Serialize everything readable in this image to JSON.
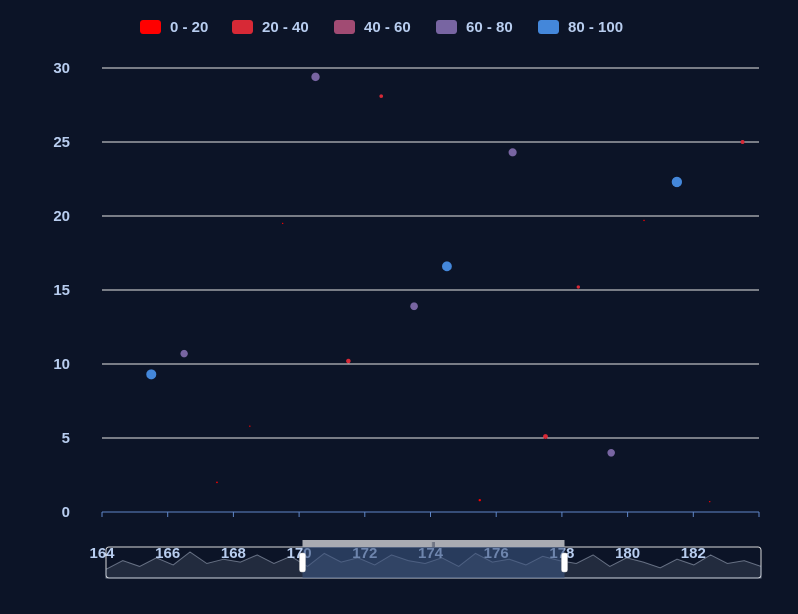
{
  "colors": {
    "background": "#0c1427",
    "axis": "#5f86c8",
    "grid": "#e6e6e6",
    "text": "#b8cdef",
    "zoom_fill": "#3c5581",
    "zoom_border": "#d9d9d9",
    "zoom_handle_bar": "#a9abb2"
  },
  "chart_data": {
    "type": "scatter",
    "title": "",
    "xlabel": "",
    "ylabel": "",
    "x_ticks": [
      "164",
      "166",
      "168",
      "170",
      "172",
      "174",
      "176",
      "178",
      "180",
      "182"
    ],
    "y_ticks": [
      "0",
      "5",
      "10",
      "15",
      "20",
      "25",
      "30"
    ],
    "xlim": [
      164,
      184
    ],
    "ylim": [
      0,
      30
    ],
    "grid": true,
    "legend_position": "top-center",
    "visual_map": [
      {
        "label": "0 - 20",
        "color": "#ff0000"
      },
      {
        "label": "20 - 40",
        "color": "#d72936"
      },
      {
        "label": "40 - 60",
        "color": "#a14b73"
      },
      {
        "label": "60 - 80",
        "color": "#7865a2"
      },
      {
        "label": "80 - 100",
        "color": "#4487da"
      }
    ],
    "points": [
      {
        "x": 165.5,
        "y": 9.3,
        "v": 92
      },
      {
        "x": 166.5,
        "y": 10.7,
        "v": 65
      },
      {
        "x": 167.5,
        "y": 2.0,
        "v": 5
      },
      {
        "x": 168.5,
        "y": 5.8,
        "v": 2
      },
      {
        "x": 169.5,
        "y": 19.5,
        "v": 2
      },
      {
        "x": 170.5,
        "y": 29.4,
        "v": 75
      },
      {
        "x": 171.5,
        "y": 10.2,
        "v": 35
      },
      {
        "x": 172.5,
        "y": 28.1,
        "v": 25
      },
      {
        "x": 173.5,
        "y": 13.9,
        "v": 68
      },
      {
        "x": 174.5,
        "y": 16.6,
        "v": 90
      },
      {
        "x": 175.5,
        "y": 0.8,
        "v": 12
      },
      {
        "x": 176.5,
        "y": 24.3,
        "v": 72
      },
      {
        "x": 177.5,
        "y": 5.1,
        "v": 38
      },
      {
        "x": 178.5,
        "y": 15.2,
        "v": 22
      },
      {
        "x": 179.5,
        "y": 4.0,
        "v": 66
      },
      {
        "x": 180.5,
        "y": 19.7,
        "v": 3
      },
      {
        "x": 181.5,
        "y": 22.3,
        "v": 95
      },
      {
        "x": 182.5,
        "y": 0.7,
        "v": 2
      },
      {
        "x": 183.5,
        "y": 25.0,
        "v": 28
      }
    ],
    "data_zoom": {
      "start": 170,
      "end": 178,
      "preview": [
        4,
        10,
        6,
        12,
        7,
        16,
        8,
        11,
        9,
        14,
        8,
        13,
        6,
        15,
        9,
        12,
        7,
        14,
        10,
        8,
        12,
        6,
        15,
        9,
        11,
        7,
        13,
        10,
        8,
        14,
        6,
        12,
        9,
        5,
        11,
        7,
        14,
        8,
        10,
        6
      ]
    }
  }
}
